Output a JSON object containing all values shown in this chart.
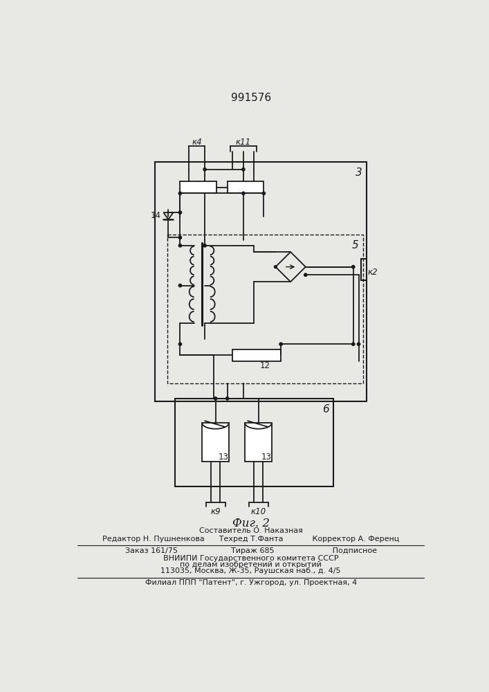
{
  "title": "991576",
  "fig_label": "Фиг. 2",
  "bg_color": "#e8e8e4",
  "lc": "#1a1a1a",
  "footer": [
    "Составитель О. Наказная",
    "Редактор Н. Пушненкова      Техред Т.Фанта            Корректор А. Ференц",
    "Заказ 161/75                      Тираж 685                        Подписное",
    "ВНИИПИ Государственного комитета СССР",
    "по делам изобретений и открытий",
    "113035, Москва, Ж-35, Раушская наб., д. 4/5",
    "Филиал ППП \"Патент\", г. Ужгород, ул. Проектная, 4"
  ]
}
